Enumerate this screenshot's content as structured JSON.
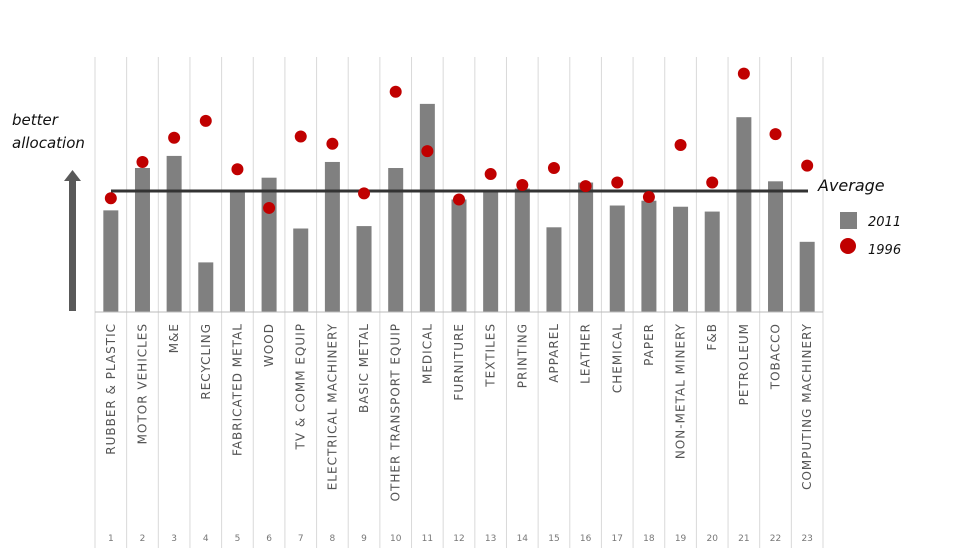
{
  "chart_data": {
    "type": "bar",
    "title": "",
    "xlabel": "",
    "ylabel": "better allocation",
    "ylabel_lines": [
      "better",
      "allocation"
    ],
    "average_label": "Average",
    "average": 1.0,
    "ylim": [
      0,
      2.0
    ],
    "legend_position": "right",
    "grid": "vertical",
    "categories": [
      "RUBBER & PLASTIC",
      "MOTOR VEHICLES",
      "M&E",
      "RECYCLING",
      "FABRICATED METAL",
      "WOOD",
      "TV & COMM EQUIP",
      "ELECTRICAL MACHINERY",
      "BASIC METAL",
      "OTHER TRANSPORT EQUIP",
      "MEDICAL",
      "FURNITURE",
      "TEXTILES",
      "PRINTING",
      "APPAREL",
      "LEATHER",
      "CHEMICAL",
      "PAPER",
      "NON-METAL MINERY",
      "F&B",
      "PETROLEUM",
      "TOBACCO",
      "COMPUTING MACHINERY"
    ],
    "indices": [
      "1",
      "2",
      "3",
      "4",
      "5",
      "6",
      "7",
      "8",
      "9",
      "10",
      "11",
      "12",
      "13",
      "14",
      "15",
      "16",
      "17",
      "18",
      "19",
      "20",
      "21",
      "22",
      "23"
    ],
    "series": [
      {
        "name": "2011",
        "type": "bar",
        "color": "#808080",
        "values": [
          0.84,
          1.19,
          1.29,
          0.41,
          1.0,
          1.11,
          0.69,
          1.24,
          0.71,
          1.19,
          1.72,
          0.93,
          1.0,
          1.02,
          0.7,
          1.07,
          0.88,
          0.92,
          0.87,
          0.83,
          1.61,
          1.08,
          0.58
        ]
      },
      {
        "name": "1996",
        "type": "scatter",
        "color": "#c00000",
        "values": [
          0.94,
          1.24,
          1.44,
          1.58,
          1.18,
          0.86,
          1.45,
          1.39,
          0.98,
          1.82,
          1.33,
          0.93,
          1.14,
          1.05,
          1.19,
          1.04,
          1.07,
          0.95,
          1.38,
          1.07,
          1.97,
          1.47,
          1.21
        ]
      }
    ]
  }
}
